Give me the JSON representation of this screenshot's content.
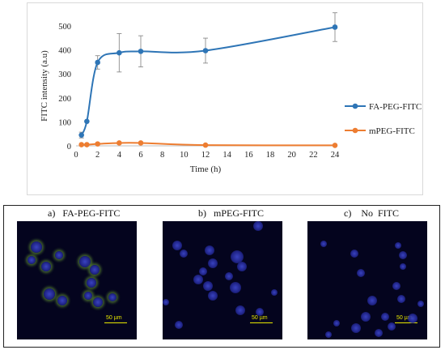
{
  "chart_data": {
    "type": "line",
    "xlabel": "Time (h)",
    "ylabel": "FITC intensity (a.u)",
    "xlim": [
      0,
      24
    ],
    "ylim": [
      0,
      500
    ],
    "xticks": [
      0,
      2,
      4,
      6,
      8,
      10,
      12,
      14,
      16,
      18,
      20,
      22,
      24
    ],
    "yticks": [
      0,
      100,
      200,
      300,
      400,
      500
    ],
    "grid": false,
    "legend_position": "right",
    "series": [
      {
        "name": "FA-PEG-FITC",
        "color": "#2e75b6",
        "x": [
          0.5,
          1,
          2,
          4,
          6,
          12,
          24
        ],
        "y": [
          45,
          102,
          348,
          388,
          394,
          397,
          495
        ],
        "err": [
          12,
          0,
          28,
          80,
          65,
          52,
          60
        ]
      },
      {
        "name": "mPEG-FITC",
        "color": "#ed7d31",
        "x": [
          0.5,
          1,
          2,
          4,
          6,
          12,
          24
        ],
        "y": [
          5,
          5,
          8,
          12,
          12,
          3,
          2
        ],
        "err": [
          0,
          0,
          0,
          0,
          0,
          0,
          0
        ]
      }
    ]
  },
  "micrographs": [
    {
      "label": "a)   FA-PEG-FITC",
      "scale": "50 µm"
    },
    {
      "label": "b)   mPEG-FITC",
      "scale": "50 µm"
    },
    {
      "label": "c)    No  FITC",
      "scale": "50 µm"
    }
  ]
}
